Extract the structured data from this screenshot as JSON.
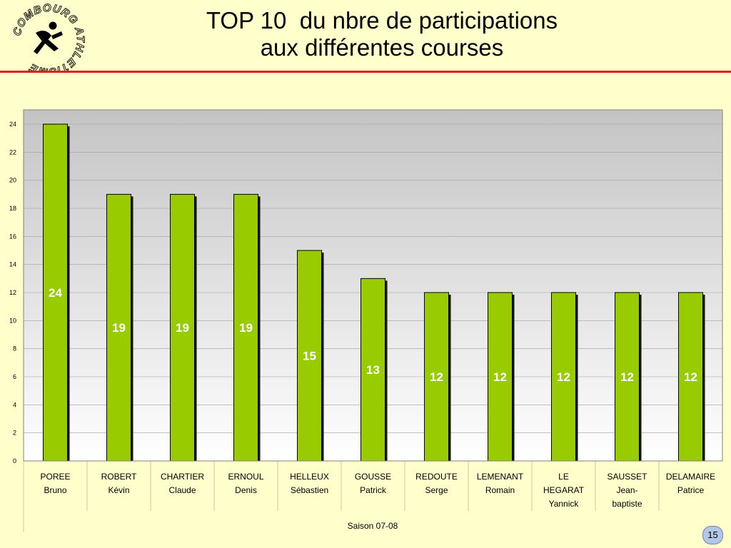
{
  "header": {
    "title_lines": [
      "TOP 10  du nbre de participations",
      "aux différentes courses"
    ],
    "logo_text": "COMBOURG ATHLETISME"
  },
  "page_number": "15",
  "colors": {
    "bar": "#99cc00",
    "bar_shadow": "#111111",
    "header_rule": "#e31b1b",
    "background": "#ffffcc"
  },
  "chart_data": {
    "type": "bar",
    "categories": [
      [
        "POREE",
        "Bruno"
      ],
      [
        "ROBERT",
        "Kévin"
      ],
      [
        "CHARTIER",
        "Claude"
      ],
      [
        "ERNOUL",
        "Denis"
      ],
      [
        "HELLEUX",
        "Sébastien"
      ],
      [
        "GOUSSE",
        "Patrick"
      ],
      [
        "REDOUTE",
        "Serge"
      ],
      [
        "LEMENANT",
        "Romain"
      ],
      [
        "LE",
        "HEGARAT",
        "Yannick"
      ],
      [
        "SAUSSET",
        "Jean-",
        "baptiste"
      ],
      [
        "DELAMAIRE",
        "Patrice"
      ]
    ],
    "values": [
      24,
      19,
      19,
      19,
      15,
      13,
      12,
      12,
      12,
      12,
      12
    ],
    "data_labels": [
      "24",
      "19",
      "19",
      "19",
      "15",
      "13",
      "12",
      "12",
      "12",
      "12",
      "12"
    ],
    "xlabel": "Saison 07-08",
    "ylabel": "",
    "ylim": [
      0,
      24
    ],
    "yticks": [
      0,
      2,
      4,
      6,
      8,
      10,
      12,
      14,
      16,
      18,
      20,
      22,
      24
    ],
    "grid": true
  }
}
